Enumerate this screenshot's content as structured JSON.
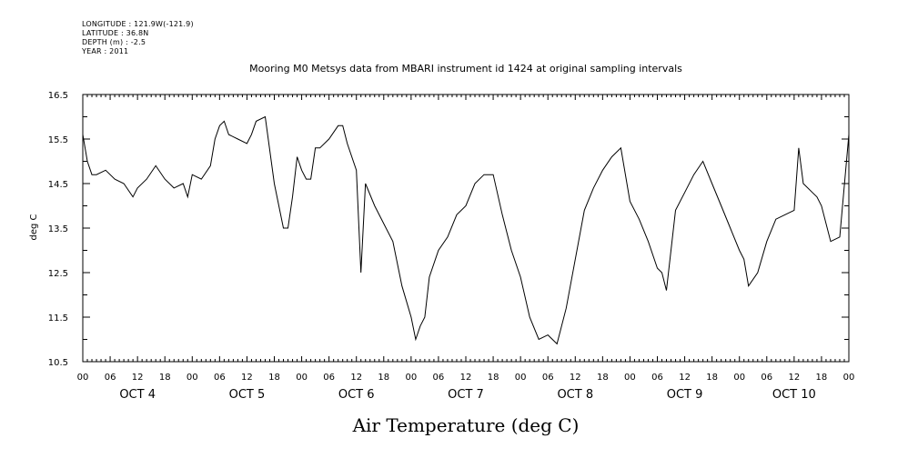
{
  "metadata": {
    "longitude": "LONGITUDE : 121.9W(-121.9)",
    "latitude": "LATITUDE : 36.8N",
    "depth": "DEPTH (m) : -2.5",
    "year": "YEAR : 2011"
  },
  "chart_data": {
    "type": "line",
    "title": "Mooring M0 Metsys data from MBARI instrument id 1424 at original sampling intervals",
    "xlabel": "Air Temperature (deg C)",
    "ylabel": "deg C",
    "ylim": [
      10.5,
      16.5
    ],
    "y_ticks": [
      "10.5",
      "11.5",
      "12.5",
      "13.5",
      "14.5",
      "15.5",
      "16.5"
    ],
    "x_range_hours": [
      0,
      168
    ],
    "x_hour_tick_labels": [
      "00",
      "06",
      "12",
      "18",
      "00",
      "06",
      "12",
      "18",
      "00",
      "06",
      "12",
      "18",
      "00",
      "06",
      "12",
      "18",
      "00",
      "06",
      "12",
      "18",
      "00",
      "06",
      "12",
      "18",
      "00",
      "06",
      "12",
      "18",
      "00"
    ],
    "x_day_labels": [
      "OCT 4",
      "OCT 5",
      "OCT 6",
      "OCT 7",
      "OCT 8",
      "OCT 9",
      "OCT 10"
    ],
    "grid": false,
    "series": [
      {
        "x": [
          0,
          1,
          2,
          3,
          5,
          7,
          9,
          11,
          12,
          14,
          16,
          18,
          20,
          22,
          23,
          24,
          26,
          28,
          29,
          30,
          31,
          32,
          34,
          36,
          37,
          38,
          40,
          42,
          44,
          45,
          46,
          47,
          48,
          49,
          50,
          51,
          52,
          54,
          56,
          57,
          58,
          60,
          61,
          62,
          64,
          66,
          68,
          70,
          72,
          73,
          74,
          75,
          76,
          78,
          80,
          82,
          84,
          86,
          88,
          90,
          92,
          94,
          96,
          98,
          100,
          102,
          104,
          106,
          108,
          110,
          112,
          114,
          116,
          118,
          120,
          122,
          124,
          126,
          127,
          128,
          130,
          132,
          134,
          136,
          138,
          140,
          142,
          144,
          145,
          146,
          148,
          150,
          152,
          154,
          156,
          157,
          158,
          160,
          161,
          162,
          164,
          166,
          168
        ],
        "y": [
          15.6,
          15.0,
          14.7,
          14.7,
          14.8,
          14.6,
          14.5,
          14.2,
          14.4,
          14.6,
          14.9,
          14.6,
          14.4,
          14.5,
          14.2,
          14.7,
          14.6,
          14.9,
          15.5,
          15.8,
          15.9,
          15.6,
          15.5,
          15.4,
          15.6,
          15.9,
          16.0,
          14.5,
          13.5,
          13.5,
          14.2,
          15.1,
          14.8,
          14.6,
          14.6,
          15.3,
          15.3,
          15.5,
          15.8,
          15.8,
          15.4,
          14.8,
          12.5,
          14.5,
          14.0,
          13.6,
          13.2,
          12.2,
          11.5,
          11.0,
          11.3,
          11.5,
          12.4,
          13.0,
          13.3,
          13.8,
          14.0,
          14.5,
          14.7,
          14.7,
          13.8,
          13.0,
          12.4,
          11.5,
          11.0,
          11.1,
          10.9,
          11.7,
          12.8,
          13.9,
          14.4,
          14.8,
          15.1,
          15.3,
          14.1,
          13.7,
          13.2,
          12.6,
          12.5,
          12.1,
          13.9,
          14.3,
          14.7,
          15.0,
          14.5,
          14.0,
          13.5,
          13.0,
          12.8,
          12.2,
          12.5,
          13.2,
          13.7,
          13.8,
          13.9,
          15.3,
          14.5,
          14.3,
          14.2,
          14.0,
          13.2,
          13.3,
          15.6
        ]
      }
    ]
  }
}
